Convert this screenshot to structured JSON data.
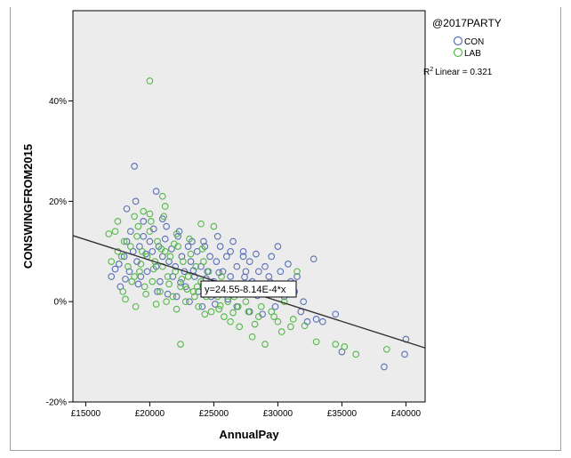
{
  "chart_data": {
    "type": "scatter",
    "xlabel": "AnnualPay",
    "ylabel": "CONSWINGFROM2015",
    "xlim": [
      14000,
      41500
    ],
    "ylim": [
      -20,
      58
    ],
    "x_ticks": [
      15000,
      20000,
      25000,
      30000,
      35000,
      40000
    ],
    "x_tick_labels": [
      "£15000",
      "£20000",
      "£25000",
      "£30000",
      "£35000",
      "£40000"
    ],
    "y_ticks": [
      -20,
      0,
      20,
      40
    ],
    "y_tick_labels": [
      "-20%",
      "0%",
      "20%",
      "40%"
    ],
    "grid": false,
    "legend": {
      "title": "@2017PARTY",
      "placement": "top-right",
      "entries": [
        {
          "name": "CON",
          "color": "#5a6fb5"
        },
        {
          "name": "LAB",
          "color": "#55b84a"
        }
      ]
    },
    "r2_label": "Linear = 0.321",
    "r2_prefix": "R",
    "r2_sup": "2",
    "fit_equation": "y=24.55-8.14E-4*x",
    "fit_line": {
      "intercept": 24.55,
      "slope": -0.000814
    },
    "plot_background": "#ececec",
    "series": [
      {
        "name": "CON",
        "color": "#5a6fb5",
        "points": [
          [
            18800,
            27
          ],
          [
            20500,
            22
          ],
          [
            18900,
            20
          ],
          [
            18200,
            18.5
          ],
          [
            19500,
            16
          ],
          [
            21000,
            16.5
          ],
          [
            17000,
            5
          ],
          [
            17300,
            6.5
          ],
          [
            17700,
            3
          ],
          [
            18000,
            9
          ],
          [
            18200,
            12
          ],
          [
            18500,
            14
          ],
          [
            18700,
            10
          ],
          [
            19000,
            8
          ],
          [
            19200,
            11
          ],
          [
            19500,
            13
          ],
          [
            19700,
            9.5
          ],
          [
            20000,
            12
          ],
          [
            20200,
            10
          ],
          [
            20500,
            7
          ],
          [
            20700,
            11
          ],
          [
            21000,
            9
          ],
          [
            21200,
            12.5
          ],
          [
            21500,
            8
          ],
          [
            21700,
            10.5
          ],
          [
            22000,
            7
          ],
          [
            22200,
            13
          ],
          [
            22500,
            9
          ],
          [
            22700,
            6
          ],
          [
            23000,
            11
          ],
          [
            23200,
            8
          ],
          [
            23500,
            5
          ],
          [
            23700,
            10
          ],
          [
            24000,
            7
          ],
          [
            24200,
            12
          ],
          [
            24500,
            6
          ],
          [
            24700,
            9
          ],
          [
            25000,
            4
          ],
          [
            25200,
            8
          ],
          [
            25500,
            11
          ],
          [
            25700,
            6
          ],
          [
            26000,
            9
          ],
          [
            26300,
            5
          ],
          [
            26500,
            12
          ],
          [
            26800,
            7
          ],
          [
            27000,
            3
          ],
          [
            27300,
            10
          ],
          [
            27500,
            6
          ],
          [
            27800,
            8
          ],
          [
            28000,
            4
          ],
          [
            28300,
            9.5
          ],
          [
            28500,
            6
          ],
          [
            28800,
            2
          ],
          [
            29000,
            7
          ],
          [
            29300,
            5
          ],
          [
            29500,
            9
          ],
          [
            29800,
            3
          ],
          [
            30000,
            11
          ],
          [
            30200,
            6
          ],
          [
            30500,
            1
          ],
          [
            30800,
            7.5
          ],
          [
            31000,
            4
          ],
          [
            31300,
            2
          ],
          [
            31500,
            5
          ],
          [
            31800,
            -2
          ],
          [
            32000,
            0
          ],
          [
            32300,
            -4
          ],
          [
            32800,
            8.5
          ],
          [
            33000,
            -3.5
          ],
          [
            33500,
            -4
          ],
          [
            34500,
            -2.5
          ],
          [
            35000,
            -10
          ],
          [
            38300,
            -13
          ],
          [
            40000,
            -7.5
          ],
          [
            39900,
            -10.5
          ],
          [
            19800,
            6
          ],
          [
            20800,
            4
          ],
          [
            21800,
            5
          ],
          [
            22800,
            3
          ],
          [
            23800,
            2
          ],
          [
            24800,
            1
          ],
          [
            25800,
            2.5
          ],
          [
            26800,
            -1
          ],
          [
            27800,
            -2
          ],
          [
            28800,
            -2.5
          ],
          [
            29800,
            -1
          ],
          [
            20300,
            14.5
          ],
          [
            21300,
            15
          ],
          [
            22300,
            14
          ],
          [
            23300,
            12
          ],
          [
            24300,
            11
          ],
          [
            25300,
            13
          ],
          [
            26300,
            10
          ],
          [
            27300,
            9
          ],
          [
            19300,
            5
          ],
          [
            20600,
            2
          ],
          [
            22100,
            1
          ],
          [
            23100,
            0
          ],
          [
            24100,
            -1
          ],
          [
            25100,
            -0.5
          ],
          [
            26100,
            0.5
          ],
          [
            17600,
            7.5
          ],
          [
            18100,
            4.5
          ],
          [
            18400,
            6
          ],
          [
            19100,
            3.5
          ],
          [
            21400,
            1.5
          ],
          [
            22400,
            3.8
          ],
          [
            23400,
            6.2
          ],
          [
            24400,
            4.6
          ],
          [
            25400,
            5.8
          ],
          [
            26400,
            3.1
          ],
          [
            27400,
            4.9
          ],
          [
            28400,
            1.2
          ],
          [
            29400,
            3.9
          ]
        ]
      },
      {
        "name": "LAB",
        "color": "#55b84a",
        "points": [
          [
            20000,
            44
          ],
          [
            21000,
            21
          ],
          [
            17500,
            16
          ],
          [
            17300,
            14
          ],
          [
            18800,
            17
          ],
          [
            19500,
            18
          ],
          [
            21200,
            19
          ],
          [
            20000,
            17.5
          ],
          [
            17000,
            8
          ],
          [
            17500,
            10
          ],
          [
            17800,
            9
          ],
          [
            18000,
            12
          ],
          [
            18300,
            7
          ],
          [
            18500,
            11
          ],
          [
            18800,
            5
          ],
          [
            19000,
            13
          ],
          [
            19200,
            6
          ],
          [
            19400,
            10
          ],
          [
            19600,
            3
          ],
          [
            19800,
            9
          ],
          [
            20000,
            14
          ],
          [
            20200,
            4
          ],
          [
            20400,
            8
          ],
          [
            20600,
            12
          ],
          [
            20800,
            2
          ],
          [
            21000,
            7
          ],
          [
            21200,
            10
          ],
          [
            21400,
            5
          ],
          [
            21600,
            9
          ],
          [
            21800,
            1
          ],
          [
            22000,
            6
          ],
          [
            22200,
            11
          ],
          [
            22400,
            3
          ],
          [
            22600,
            8
          ],
          [
            22800,
            0
          ],
          [
            23000,
            5
          ],
          [
            23200,
            9.5
          ],
          [
            23400,
            2
          ],
          [
            23600,
            7
          ],
          [
            23800,
            -1
          ],
          [
            24000,
            4
          ],
          [
            24200,
            8
          ],
          [
            24400,
            1
          ],
          [
            24600,
            6
          ],
          [
            24800,
            -2
          ],
          [
            25000,
            15
          ],
          [
            25200,
            3
          ],
          [
            25400,
            -1.5
          ],
          [
            25600,
            5
          ],
          [
            25800,
            -3
          ],
          [
            26000,
            2
          ],
          [
            26300,
            -4
          ],
          [
            26600,
            1
          ],
          [
            27000,
            -5
          ],
          [
            27500,
            0
          ],
          [
            28000,
            -7
          ],
          [
            28500,
            -3
          ],
          [
            29000,
            -8.5
          ],
          [
            29500,
            -2
          ],
          [
            30000,
            -4
          ],
          [
            30500,
            0
          ],
          [
            31000,
            -5
          ],
          [
            31200,
            -3.5
          ],
          [
            31500,
            6
          ],
          [
            33000,
            -8
          ],
          [
            34500,
            -8.5
          ],
          [
            35200,
            -9
          ],
          [
            36100,
            -10.5
          ],
          [
            38500,
            -9.5
          ],
          [
            22400,
            -8.5
          ],
          [
            24000,
            15.5
          ],
          [
            16800,
            13.5
          ],
          [
            18100,
            0.5
          ],
          [
            18900,
            -1
          ],
          [
            19700,
            1.5
          ],
          [
            20500,
            -0.5
          ],
          [
            21300,
            0
          ],
          [
            22100,
            -1.5
          ],
          [
            22900,
            2.5
          ],
          [
            23700,
            3
          ],
          [
            24500,
            2
          ],
          [
            25300,
            1
          ],
          [
            26100,
            0
          ],
          [
            26900,
            -1
          ],
          [
            27700,
            -2
          ],
          [
            28700,
            -1
          ],
          [
            29700,
            -3
          ],
          [
            19100,
            15
          ],
          [
            20100,
            16
          ],
          [
            21100,
            17
          ],
          [
            22100,
            13.5
          ],
          [
            23100,
            12.5
          ],
          [
            24100,
            10.5
          ],
          [
            17900,
            2
          ],
          [
            18600,
            4
          ],
          [
            19300,
            7.5
          ],
          [
            20300,
            6.5
          ],
          [
            21500,
            3.5
          ],
          [
            22500,
            4.5
          ],
          [
            23500,
            1
          ],
          [
            24300,
            -2.5
          ],
          [
            25500,
            -0.8
          ],
          [
            26500,
            -2.2
          ],
          [
            28200,
            -4.5
          ],
          [
            30300,
            -6
          ],
          [
            32100,
            -4.8
          ],
          [
            20900,
            10.5
          ],
          [
            21900,
            11.5
          ]
        ]
      }
    ]
  }
}
